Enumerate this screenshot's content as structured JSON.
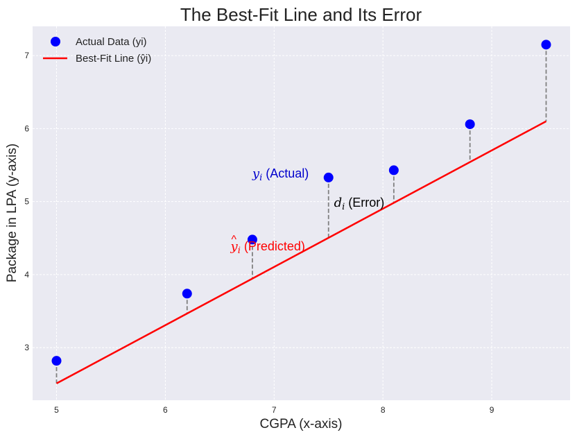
{
  "chart_data": {
    "type": "scatter",
    "title": "The Best-Fit Line and Its Error",
    "xlabel": "CGPA (x-axis)",
    "ylabel": "Package in LPA (y-axis)",
    "xlim": [
      4.78,
      9.72
    ],
    "ylim": [
      2.28,
      7.4
    ],
    "xticks": [
      5,
      6,
      7,
      8,
      9
    ],
    "yticks": [
      3,
      4,
      5,
      6,
      7
    ],
    "grid": true,
    "legend_position": "top-left",
    "series": [
      {
        "name": "Actual Data (yi)",
        "kind": "scatter",
        "color": "#0000ff",
        "x": [
          5.0,
          6.2,
          6.8,
          7.5,
          8.1,
          8.8,
          9.5
        ],
        "y": [
          2.82,
          3.74,
          4.48,
          5.33,
          5.43,
          6.06,
          7.15
        ]
      },
      {
        "name": "Best-Fit Line (ŷi)",
        "kind": "line",
        "color": "#ff0000",
        "x": [
          5.0,
          9.5
        ],
        "y": [
          2.51,
          6.1
        ]
      }
    ],
    "error_lines": {
      "color": "#808080",
      "style": "dashed"
    },
    "annotations": [
      {
        "id": "actual",
        "symbol": "y",
        "sub": "i",
        "hat": false,
        "text": " (Actual)",
        "color": "#0000cc",
        "x": 6.8,
        "y": 5.33
      },
      {
        "id": "error",
        "symbol": "d",
        "sub": "i",
        "hat": false,
        "text": " (Error)",
        "color": "#000000",
        "x": 7.55,
        "y": 4.93
      },
      {
        "id": "predicted",
        "symbol": "y",
        "sub": "i",
        "hat": true,
        "text": " (Predicted)",
        "color": "#ff0000",
        "x": 6.6,
        "y": 4.33
      }
    ]
  }
}
